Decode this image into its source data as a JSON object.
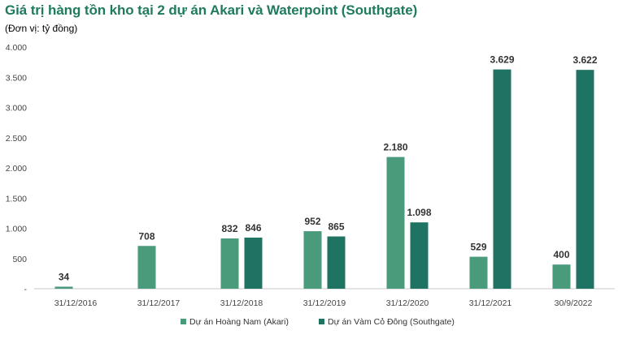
{
  "chart_data": {
    "type": "bar",
    "title": "Giá trị hàng tồn kho tại 2 dự án Akari và Waterpoint (Southgate)",
    "subtitle": "(Đơn vị: tỷ đồng)",
    "categories": [
      "31/12/2016",
      "31/12/2017",
      "31/12/2018",
      "31/12/2019",
      "31/12/2020",
      "31/12/2021",
      "30/9/2022"
    ],
    "series": [
      {
        "name": "Dự án Hoàng Nam (Akari)",
        "color": "#4a9a7c",
        "values": [
          34,
          708,
          832,
          952,
          2180,
          529,
          400
        ],
        "labels": [
          "34",
          "708",
          "832",
          "952",
          "2.180",
          "529",
          "400"
        ]
      },
      {
        "name": "Dự án Vàm Cỏ Đông (Southgate)",
        "color": "#1f7363",
        "values": [
          null,
          null,
          846,
          865,
          1098,
          3629,
          3622
        ],
        "labels": [
          "",
          "",
          "846",
          "865",
          "1.098",
          "3.629",
          "3.622"
        ]
      }
    ],
    "ylim": [
      0,
      4000
    ],
    "yticks": [
      0,
      500,
      1000,
      1500,
      2000,
      2500,
      3000,
      3500,
      4000
    ],
    "ytick_labels": [
      "-",
      "500",
      "1.000",
      "1.500",
      "2.000",
      "2.500",
      "3.000",
      "3.500",
      "4.000"
    ],
    "xlabel": "",
    "ylabel": "",
    "legend_position": "bottom"
  }
}
